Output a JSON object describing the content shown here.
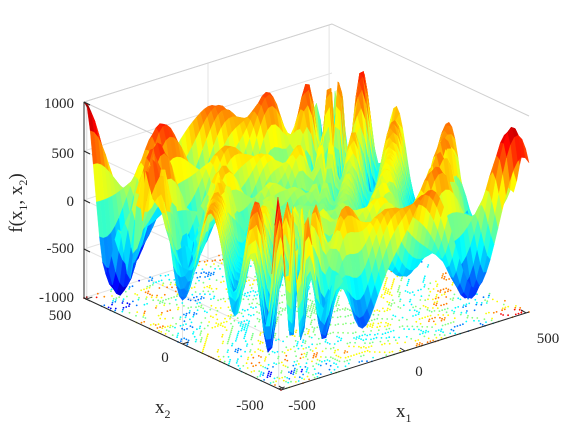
{
  "chart_data": {
    "type": "surface",
    "title": "",
    "function": "f(x1, x2) over a 3-D surface with a contour projection on the floor",
    "xlabel": {
      "main": "x",
      "sub": "1"
    },
    "ylabel": {
      "main": "x",
      "sub": "2"
    },
    "zlabel": {
      "pre": "f(x",
      "sub1": "1",
      "mid": ", x",
      "sub2": "2",
      "post": ")"
    },
    "xlim": [
      -512,
      512
    ],
    "ylim": [
      -512,
      512
    ],
    "zlim": [
      -1000,
      1000
    ],
    "x_ticks": [
      "-500",
      "0",
      "500"
    ],
    "y_ticks": [
      "500",
      "0",
      "-500"
    ],
    "z_ticks": [
      "1000",
      "500",
      "0",
      "-500",
      "-1000"
    ],
    "colormap": "jet",
    "grid": true,
    "box": true,
    "floor_contour": true
  }
}
